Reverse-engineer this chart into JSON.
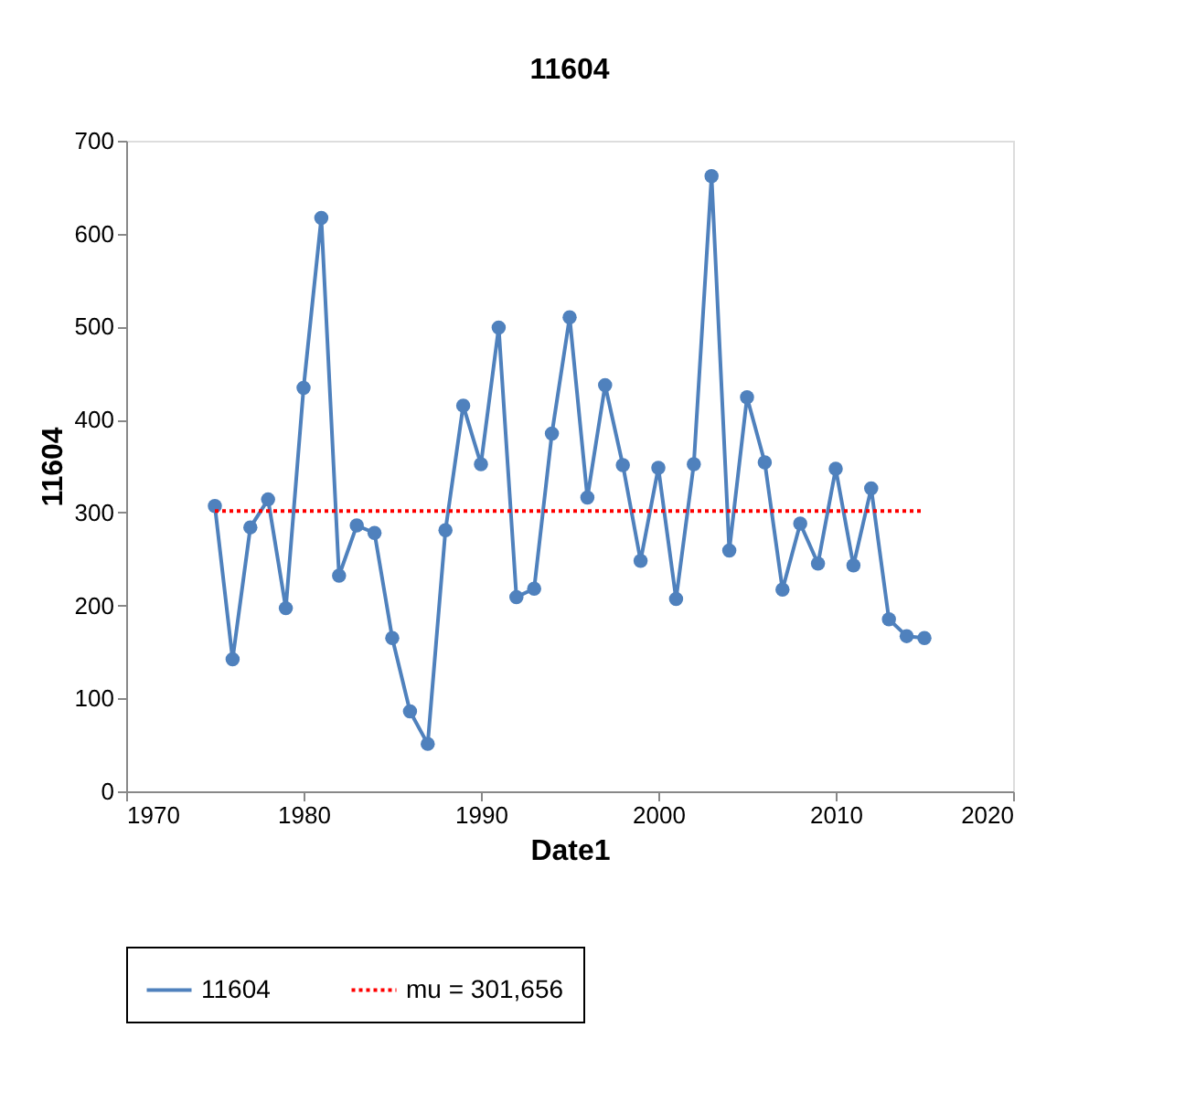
{
  "chart_data": {
    "type": "line",
    "title": "11604",
    "xlabel": "Date1",
    "ylabel": "11604",
    "x": [
      1975,
      1976,
      1977,
      1978,
      1979,
      1980,
      1981,
      1982,
      1983,
      1984,
      1985,
      1986,
      1987,
      1988,
      1989,
      1990,
      1991,
      1992,
      1993,
      1994,
      1995,
      1996,
      1997,
      1998,
      1999,
      2000,
      2001,
      2002,
      2003,
      2004,
      2005,
      2006,
      2007,
      2008,
      2009,
      2010,
      2011,
      2012,
      2013,
      2014,
      2015
    ],
    "series": [
      {
        "name": "11604",
        "color": "#4f81bd",
        "values": [
          307,
          142,
          284,
          314,
          197,
          434,
          617,
          232,
          286,
          278,
          165,
          86,
          51,
          281,
          415,
          352,
          499,
          209,
          218,
          385,
          510,
          316,
          437,
          351,
          248,
          348,
          207,
          352,
          662,
          259,
          424,
          354,
          217,
          288,
          245,
          347,
          243,
          326,
          185,
          167,
          165
        ]
      }
    ],
    "ref_lines": [
      {
        "axis": "y",
        "value": 301.656,
        "label": "mu = 301,656",
        "color": "#ff0000",
        "line_style": "dotted"
      }
    ],
    "xlim": [
      1970,
      2020
    ],
    "xticks": [
      1970,
      1980,
      1990,
      2000,
      2010,
      2020
    ],
    "ylim": [
      0,
      700
    ],
    "yticks": [
      0,
      100,
      200,
      300,
      400,
      500,
      600,
      700
    ],
    "marker": "circle",
    "line_style": "solid",
    "grid": false,
    "legend": "bottom"
  }
}
